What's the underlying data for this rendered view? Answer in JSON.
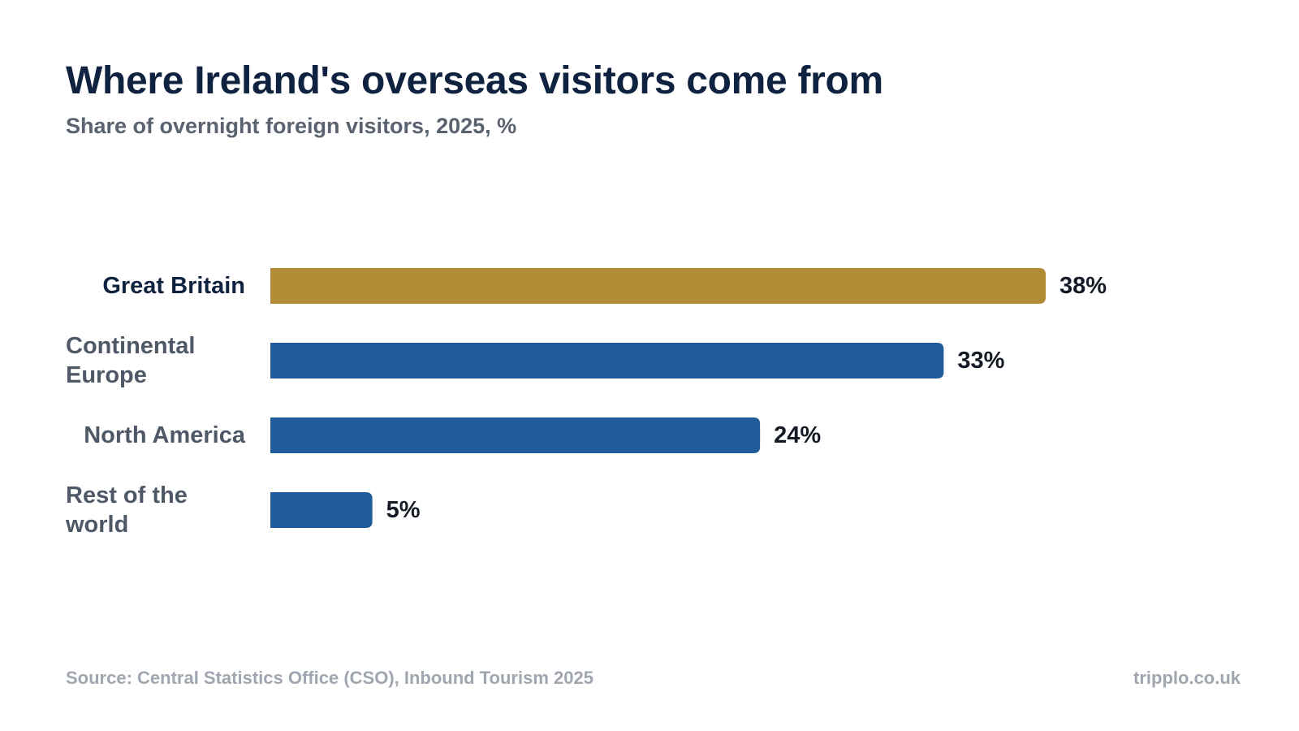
{
  "title": "Where Ireland's overseas visitors come from",
  "subtitle": "Share of overnight foreign visitors, 2025, %",
  "source": "Source: Central Statistics Office (CSO), Inbound Tourism 2025",
  "brand": "tripplo.co.uk",
  "colors": {
    "highlight": "#b08c36",
    "bar": "#1f5c99",
    "highlight_label": "#0f2340",
    "label": "#4f5866",
    "value": "#141a26"
  },
  "chart_data": {
    "type": "bar",
    "orientation": "horizontal",
    "categories": [
      "Great Britain",
      "Continental Europe",
      "North America",
      "Rest of the world"
    ],
    "category_lines": [
      [
        "Great Britain"
      ],
      [
        "Continental",
        "Europe"
      ],
      [
        "North America"
      ],
      [
        "Rest of the",
        "world"
      ]
    ],
    "values": [
      38,
      33,
      24,
      5
    ],
    "value_labels": [
      "38%",
      "33%",
      "24%",
      "5%"
    ],
    "highlight": "Great Britain",
    "unit": "%",
    "xlim": [
      0,
      38
    ],
    "grid": false,
    "legend": "none"
  }
}
